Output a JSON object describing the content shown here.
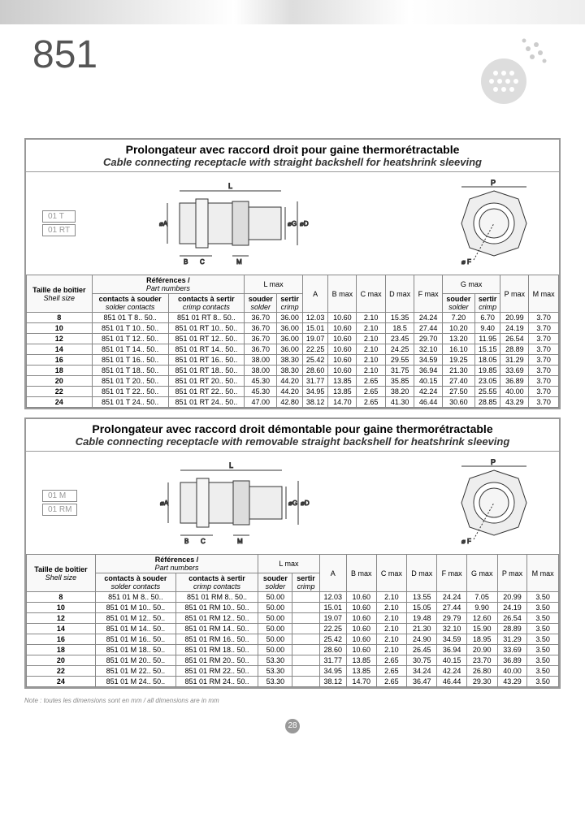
{
  "series": "851",
  "pageNumber": "28",
  "footnote": "Note : toutes les dimensions sont en mm / all dimensions are in mm",
  "panels": [
    {
      "title_fr": "Prolongateur avec raccord droit pour gaine thermorétractable",
      "title_en": "Cable connecting receptacle with straight backshell for heatshrink sleeving",
      "tags": [
        "01 T",
        "01 RT"
      ],
      "hdr_shell_fr": "Taille de boîtier",
      "hdr_shell_en": "Shell size",
      "hdr_ref_fr": "Références /",
      "hdr_ref_en": "Part numbers",
      "hdr_solder_fr": "contacts à souder",
      "hdr_solder_en": "solder contacts",
      "hdr_crimp_fr": "contacts à sertir",
      "hdr_crimp_en": "crimp contacts",
      "hdr_lmax": "L max",
      "hdr_a": "A",
      "hdr_b": "B max",
      "hdr_c": "C max",
      "hdr_d": "D max",
      "hdr_f": "F max",
      "hdr_g": "G max",
      "hdr_p": "P max",
      "hdr_m": "M max",
      "hdr_souder_fr": "souder",
      "hdr_souder_en": "solder",
      "hdr_sertir_fr": "sertir",
      "hdr_sertir_en": "crimp",
      "rows": [
        {
          "s": "8",
          "p1": "851 01 T 8.. 50..",
          "p2": "851 01 RT 8.. 50..",
          "ls": "36.70",
          "lc": "36.00",
          "a": "12.03",
          "b": "10.60",
          "c": "2.10",
          "d": "15.35",
          "f": "24.24",
          "gs": "7.20",
          "gc": "6.70",
          "p": "20.99",
          "m": "3.70"
        },
        {
          "s": "10",
          "p1": "851 01 T 10.. 50..",
          "p2": "851 01 RT 10.. 50..",
          "ls": "36.70",
          "lc": "36.00",
          "a": "15.01",
          "b": "10.60",
          "c": "2.10",
          "d": "18.5",
          "f": "27.44",
          "gs": "10.20",
          "gc": "9.40",
          "p": "24.19",
          "m": "3.70"
        },
        {
          "s": "12",
          "p1": "851 01 T 12.. 50..",
          "p2": "851 01 RT 12.. 50..",
          "ls": "36.70",
          "lc": "36.00",
          "a": "19.07",
          "b": "10.60",
          "c": "2.10",
          "d": "23.45",
          "f": "29.70",
          "gs": "13.20",
          "gc": "11.95",
          "p": "26.54",
          "m": "3.70"
        },
        {
          "s": "14",
          "p1": "851 01 T 14.. 50..",
          "p2": "851 01 RT 14.. 50..",
          "ls": "36.70",
          "lc": "36.00",
          "a": "22.25",
          "b": "10.60",
          "c": "2.10",
          "d": "24.25",
          "f": "32.10",
          "gs": "16.10",
          "gc": "15.15",
          "p": "28.89",
          "m": "3.70"
        },
        {
          "s": "16",
          "p1": "851 01 T 16.. 50..",
          "p2": "851 01 RT 16.. 50..",
          "ls": "38.00",
          "lc": "38.30",
          "a": "25.42",
          "b": "10.60",
          "c": "2.10",
          "d": "29.55",
          "f": "34.59",
          "gs": "19.25",
          "gc": "18.05",
          "p": "31.29",
          "m": "3.70"
        },
        {
          "s": "18",
          "p1": "851 01 T 18.. 50..",
          "p2": "851 01 RT 18.. 50..",
          "ls": "38.00",
          "lc": "38.30",
          "a": "28.60",
          "b": "10.60",
          "c": "2.10",
          "d": "31.75",
          "f": "36.94",
          "gs": "21.30",
          "gc": "19.85",
          "p": "33.69",
          "m": "3.70"
        },
        {
          "s": "20",
          "p1": "851 01 T 20.. 50..",
          "p2": "851 01 RT 20.. 50..",
          "ls": "45.30",
          "lc": "44.20",
          "a": "31.77",
          "b": "13.85",
          "c": "2.65",
          "d": "35.85",
          "f": "40.15",
          "gs": "27.40",
          "gc": "23.05",
          "p": "36.89",
          "m": "3.70"
        },
        {
          "s": "22",
          "p1": "851 01 T 22.. 50..",
          "p2": "851 01 RT 22.. 50..",
          "ls": "45.30",
          "lc": "44.20",
          "a": "34.95",
          "b": "13.85",
          "c": "2.65",
          "d": "38.20",
          "f": "42.24",
          "gs": "27.50",
          "gc": "25.55",
          "p": "40.00",
          "m": "3.70"
        },
        {
          "s": "24",
          "p1": "851 01 T 24.. 50..",
          "p2": "851 01 RT 24.. 50..",
          "ls": "47.00",
          "lc": "42.80",
          "a": "38.12",
          "b": "14.70",
          "c": "2.65",
          "d": "41.30",
          "f": "46.44",
          "gs": "30.60",
          "gc": "28.85",
          "p": "43.29",
          "m": "3.70"
        }
      ]
    },
    {
      "title_fr": "Prolongateur avec raccord droit démontable pour gaine thermorétractable",
      "title_en": "Cable connecting receptacle with removable straight backshell for heatshrink sleeving",
      "tags": [
        "01 M",
        "01 RM"
      ],
      "hdr_shell_fr": "Taille de boîtier",
      "hdr_shell_en": "Shell size",
      "hdr_ref_fr": "Références /",
      "hdr_ref_en": "Part numbers",
      "hdr_solder_fr": "contacts à souder",
      "hdr_solder_en": "solder contacts",
      "hdr_crimp_fr": "contacts à sertir",
      "hdr_crimp_en": "crimp contacts",
      "hdr_lmax": "L max",
      "hdr_a": "A",
      "hdr_b": "B max",
      "hdr_c": "C max",
      "hdr_d": "D max",
      "hdr_f": "F max",
      "hdr_g": "G max",
      "hdr_p": "P max",
      "hdr_m": "M max",
      "hdr_souder_fr": "souder",
      "hdr_souder_en": "solder",
      "hdr_sertir_fr": "sertir",
      "hdr_sertir_en": "crimp",
      "rows": [
        {
          "s": "8",
          "p1": "851 01 M 8.. 50..",
          "p2": "851 01 RM 8.. 50..",
          "ls": "50.00",
          "lc": "",
          "a": "12.03",
          "b": "10.60",
          "c": "2.10",
          "d": "13.55",
          "f": "24.24",
          "g": "7.05",
          "p": "20.99",
          "m": "3.50"
        },
        {
          "s": "10",
          "p1": "851 01 M 10.. 50..",
          "p2": "851 01 RM 10.. 50..",
          "ls": "50.00",
          "lc": "",
          "a": "15.01",
          "b": "10.60",
          "c": "2.10",
          "d": "15.05",
          "f": "27.44",
          "g": "9.90",
          "p": "24.19",
          "m": "3.50"
        },
        {
          "s": "12",
          "p1": "851 01 M 12.. 50..",
          "p2": "851 01 RM 12.. 50..",
          "ls": "50.00",
          "lc": "",
          "a": "19.07",
          "b": "10.60",
          "c": "2.10",
          "d": "19.48",
          "f": "29.79",
          "g": "12.60",
          "p": "26.54",
          "m": "3.50"
        },
        {
          "s": "14",
          "p1": "851 01 M 14.. 50..",
          "p2": "851 01 RM 14.. 50..",
          "ls": "50.00",
          "lc": "",
          "a": "22.25",
          "b": "10.60",
          "c": "2.10",
          "d": "21.30",
          "f": "32.10",
          "g": "15.90",
          "p": "28.89",
          "m": "3.50"
        },
        {
          "s": "16",
          "p1": "851 01 M 16.. 50..",
          "p2": "851 01 RM 16.. 50..",
          "ls": "50.00",
          "lc": "",
          "a": "25.42",
          "b": "10.60",
          "c": "2.10",
          "d": "24.90",
          "f": "34.59",
          "g": "18.95",
          "p": "31.29",
          "m": "3.50"
        },
        {
          "s": "18",
          "p1": "851 01 M 18.. 50..",
          "p2": "851 01 RM 18.. 50..",
          "ls": "50.00",
          "lc": "",
          "a": "28.60",
          "b": "10.60",
          "c": "2.10",
          "d": "26.45",
          "f": "36.94",
          "g": "20.90",
          "p": "33.69",
          "m": "3.50"
        },
        {
          "s": "20",
          "p1": "851 01 M 20.. 50..",
          "p2": "851 01 RM 20.. 50..",
          "ls": "53.30",
          "lc": "",
          "a": "31.77",
          "b": "13.85",
          "c": "2.65",
          "d": "30.75",
          "f": "40.15",
          "g": "23.70",
          "p": "36.89",
          "m": "3.50"
        },
        {
          "s": "22",
          "p1": "851 01 M 22.. 50..",
          "p2": "851 01 RM 22.. 50..",
          "ls": "53.30",
          "lc": "",
          "a": "34.95",
          "b": "13.85",
          "c": "2.65",
          "d": "34.24",
          "f": "42.24",
          "g": "26.80",
          "p": "40.00",
          "m": "3.50"
        },
        {
          "s": "24",
          "p1": "851 01 M 24.. 50..",
          "p2": "851 01 RM 24.. 50..",
          "ls": "53.30",
          "lc": "",
          "a": "38.12",
          "b": "14.70",
          "c": "2.65",
          "d": "36.47",
          "f": "46.44",
          "g": "29.30",
          "p": "43.29",
          "m": "3.50"
        }
      ]
    }
  ]
}
